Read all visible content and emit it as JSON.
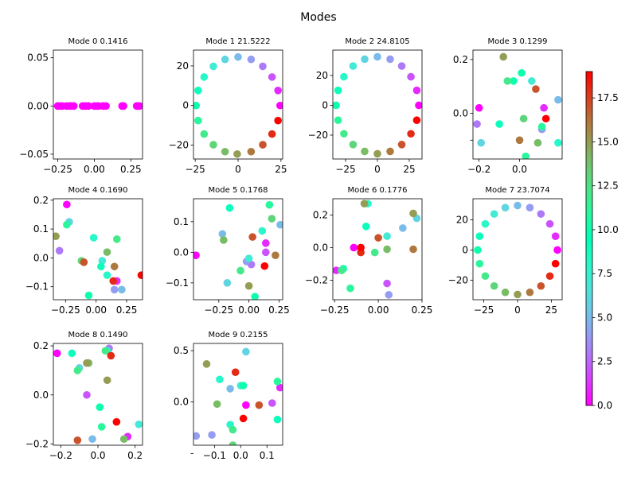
{
  "figure": {
    "suptitle": "Modes"
  },
  "colorbar": {
    "colormap": "rainbow",
    "vmin": 0,
    "vmax": 19,
    "ticks": [
      "0.0",
      "2.5",
      "5.0",
      "7.5",
      "10.0",
      "12.5",
      "15.0",
      "17.5"
    ]
  },
  "chart_data": [
    {
      "type": "scatter",
      "title": "Mode 0 0.1416",
      "xlim": [
        -0.28,
        0.33
      ],
      "ylim": [
        -0.055,
        0.058
      ],
      "xticks": [
        -0.25,
        0.0,
        0.25
      ],
      "xticklabels": [
        "−0.25",
        "0.00",
        "0.25"
      ],
      "yticks": [
        -0.05,
        0.0,
        0.05
      ],
      "yticklabels": [
        "−0.05",
        "0.00",
        "0.05"
      ],
      "x": [
        -0.25,
        -0.24,
        -0.22,
        -0.17,
        -0.16,
        -0.14,
        -0.08,
        -0.06,
        -0.04,
        0.02,
        0.03,
        0.06,
        0.08,
        0.19,
        0.2,
        0.29,
        0.3,
        0.31,
        -0.19,
        0.0
      ],
      "y": [
        0,
        0,
        0,
        0,
        0,
        0,
        0,
        0,
        0,
        0,
        0,
        0,
        0,
        0,
        0,
        0,
        0,
        0,
        0,
        0
      ],
      "c": [
        0,
        0,
        0,
        0,
        0,
        0,
        0,
        0,
        0,
        0,
        0,
        0,
        0,
        0,
        0,
        0,
        0,
        0,
        0,
        0
      ]
    },
    {
      "type": "scatter",
      "title": "Mode 1 21.5222",
      "xlim": [
        -26,
        26
      ],
      "ylim": [
        -27,
        28
      ],
      "xticks": [
        -25,
        0,
        25
      ],
      "xticklabels": [
        "−25",
        "0",
        "25"
      ],
      "yticks": [
        -20,
        0,
        20
      ],
      "yticklabels": [
        "−20",
        "0",
        "20"
      ],
      "x": [
        24.5,
        23.3,
        19.8,
        14.4,
        7.6,
        0,
        -7.6,
        -14.4,
        -19.8,
        -23.3,
        -24.5,
        -23.3,
        -19.8,
        -14.4,
        -7.6,
        -0.5,
        7.6,
        14.4,
        19.8,
        23.3
      ],
      "y": [
        0,
        7.6,
        14.4,
        19.8,
        23.3,
        24.5,
        23.3,
        19.8,
        14.4,
        7.6,
        0,
        -7.6,
        -14.4,
        -19.8,
        -23.3,
        -24.5,
        -23.3,
        -19.8,
        -14.4,
        -7.6
      ],
      "c": [
        0,
        1,
        2,
        3,
        4,
        5,
        6,
        7,
        8,
        9,
        10,
        11,
        12,
        13,
        14,
        15,
        16,
        17,
        18,
        19
      ]
    },
    {
      "type": "scatter",
      "title": "Mode 2 24.8105",
      "xlim": [
        -35,
        35
      ],
      "ylim": [
        -36,
        37
      ],
      "xticks": [
        -25,
        0,
        25
      ],
      "xticklabels": [
        "−25",
        "0",
        "25"
      ],
      "yticks": [
        -20,
        0,
        20
      ],
      "yticklabels": [
        "−20",
        "0",
        "20"
      ],
      "x": [
        32.5,
        30.9,
        26.3,
        19.1,
        10.0,
        0,
        -10.0,
        -19.1,
        -26.3,
        -30.9,
        -32.5,
        -30.9,
        -26.3,
        -19.1,
        -10.0,
        0,
        10.0,
        19.1,
        26.3,
        30.9
      ],
      "y": [
        0,
        10.0,
        19.1,
        26.3,
        30.9,
        32.5,
        30.9,
        26.3,
        19.1,
        10.0,
        0,
        -10.0,
        -19.1,
        -26.3,
        -30.9,
        -32.5,
        -30.9,
        -26.3,
        -19.1,
        -10.0
      ],
      "c": [
        0,
        1,
        2,
        3,
        4,
        5,
        6,
        7,
        8,
        9,
        10,
        11,
        12,
        13,
        14,
        15,
        16,
        17,
        18,
        19
      ]
    },
    {
      "type": "scatter",
      "title": "Mode 3 0.1299",
      "xlim": [
        -0.23,
        0.21
      ],
      "ylim": [
        -0.17,
        0.235
      ],
      "xticks": [
        -0.2,
        0.0
      ],
      "xticklabels": [
        "−0.2",
        "0.0"
      ],
      "yticks": [
        -0.1,
        0.0,
        0.2
      ],
      "yticklabels": [
        "",
        "0.0",
        "0.2"
      ],
      "x": [
        -0.2,
        0.12,
        -0.21,
        0.11,
        0.19,
        -0.19,
        0.06,
        0.19,
        -0.1,
        -0.03,
        0.01,
        0.03,
        0.11,
        -0.06,
        0.02,
        0.09,
        -0.08,
        0.0,
        0.08,
        0.13
      ],
      "y": [
        0.02,
        0.02,
        -0.04,
        -0.06,
        0.05,
        -0.11,
        0.12,
        -0.11,
        -0.04,
        0.12,
        0.15,
        -0.16,
        -0.05,
        0.12,
        -0.02,
        -0.11,
        0.21,
        -0.1,
        0.09,
        -0.02
      ],
      "c": [
        0,
        1,
        3,
        4,
        5,
        6,
        7,
        8,
        9,
        10,
        10,
        11,
        11,
        12,
        13,
        14,
        15,
        16,
        17,
        19
      ]
    },
    {
      "type": "scatter",
      "title": "Mode 4 0.1690",
      "xlim": [
        -0.35,
        0.38
      ],
      "ylim": [
        -0.145,
        0.205
      ],
      "xticks": [
        -0.25,
        0.0,
        0.25
      ],
      "xticklabels": [
        "−0.25",
        "0.00",
        "0.25"
      ],
      "yticks": [
        -0.1,
        0.0,
        0.1,
        0.2
      ],
      "yticklabels": [
        "−0.1",
        "0.0",
        "0.1",
        "0.2"
      ],
      "x": [
        -0.24,
        0.17,
        -0.3,
        0.15,
        -0.22,
        0.21,
        0.05,
        0.09,
        -0.02,
        0.04,
        -0.06,
        -0.24,
        0.17,
        -0.12,
        0.09,
        -0.33,
        0.15,
        -0.1,
        0.14,
        0.37
      ],
      "y": [
        0.185,
        -0.08,
        0.025,
        -0.11,
        0.125,
        -0.11,
        -0.01,
        -0.06,
        0.07,
        -0.03,
        -0.13,
        0.115,
        0.065,
        -0.01,
        0.02,
        0.075,
        -0.03,
        -0.015,
        -0.08,
        -0.06
      ],
      "c": [
        0,
        1,
        3,
        4,
        6,
        5,
        7,
        8,
        8,
        9,
        10,
        11,
        12,
        13,
        14,
        15,
        16,
        17,
        18,
        19
      ]
    },
    {
      "type": "scatter",
      "title": "Mode 5 0.1768",
      "xlim": [
        -0.46,
        0.28
      ],
      "ylim": [
        -0.155,
        0.175
      ],
      "xticks": [
        -0.25,
        0.0,
        0.25
      ],
      "xticklabels": [
        "−0.25",
        "0.00",
        "0.25"
      ],
      "yticks": [
        -0.1,
        0.0,
        0.1
      ],
      "yticklabels": [
        "−0.1",
        "0.0",
        "0.1"
      ],
      "x": [
        -0.44,
        0.14,
        0.14,
        0.02,
        -0.02,
        0.26,
        -0.22,
        -0.18,
        0.0,
        0.11,
        -0.16,
        0.05,
        0.17,
        -0.07,
        0.19,
        -0.21,
        0.0,
        0.22,
        0.03,
        0.13
      ],
      "y": [
        -0.01,
        0.03,
        0.0,
        -0.04,
        -0.03,
        0.09,
        0.06,
        -0.1,
        -0.02,
        0.07,
        0.145,
        -0.145,
        0.155,
        -0.06,
        0.11,
        0.04,
        -0.11,
        -0.01,
        0.05,
        -0.045
      ],
      "c": [
        0,
        1,
        2,
        3,
        4,
        5,
        5,
        6,
        7,
        8,
        9,
        10,
        11,
        12,
        13,
        14,
        15,
        16,
        17,
        19
      ]
    },
    {
      "type": "scatter",
      "title": "Mode 6 0.1776",
      "xlim": [
        -0.26,
        0.25
      ],
      "ylim": [
        -0.32,
        0.3
      ],
      "xticks": [
        -0.25,
        0.0,
        0.25
      ],
      "xticklabels": [
        "−0.25",
        "0.00",
        "0.25"
      ],
      "yticks": [
        -0.2,
        0.0,
        0.2
      ],
      "yticklabels": [
        "−0.2",
        "0.0",
        "0.2"
      ],
      "x": [
        -0.14,
        -0.24,
        0.05,
        0.06,
        0.22,
        0.14,
        0.05,
        -0.06,
        -0.07,
        -0.2,
        -0.16,
        -0.02,
        -0.21,
        0.05,
        -0.08,
        0.2,
        0.2,
        0.0,
        -0.1,
        -0.1
      ],
      "y": [
        0.0,
        -0.14,
        -0.22,
        -0.29,
        0.18,
        0.12,
        0.07,
        0.27,
        0.13,
        -0.13,
        -0.25,
        -0.03,
        -0.14,
        -0.01,
        0.27,
        0.21,
        -0.01,
        0.06,
        -0.03,
        0.0
      ],
      "c": [
        0,
        1,
        2,
        4,
        6,
        5,
        7,
        8,
        9,
        10,
        11,
        12,
        12,
        14,
        15,
        15,
        16,
        17,
        18,
        19
      ]
    },
    {
      "type": "scatter",
      "title": "Mode 7 23.7074",
      "xlim": [
        -33,
        33
      ],
      "ylim": [
        -33,
        34
      ],
      "xticks": [
        -25,
        0,
        25
      ],
      "xticklabels": [
        "−25",
        "0",
        "25"
      ],
      "yticks": [
        -20,
        0,
        20
      ],
      "yticklabels": [
        "−20",
        "0",
        "20"
      ],
      "x": [
        29.5,
        28.1,
        23.9,
        17.3,
        9.1,
        0,
        -9.1,
        -17.3,
        -23.9,
        -28.1,
        -29.5,
        -28.1,
        -23.9,
        -17.3,
        -9.1,
        0,
        9.1,
        17.3,
        23.9,
        28.1
      ],
      "y": [
        0,
        9.1,
        17.3,
        23.9,
        28.1,
        29.5,
        28.1,
        23.9,
        17.3,
        9.1,
        0,
        -9.1,
        -17.3,
        -23.9,
        -28.1,
        -29.5,
        -28.1,
        -23.9,
        -17.3,
        -9.1
      ],
      "c": [
        0,
        1,
        2,
        3,
        4,
        5,
        6,
        7,
        8,
        9,
        10,
        11,
        12,
        13,
        14,
        15,
        16,
        17,
        18,
        19
      ]
    },
    {
      "type": "scatter",
      "title": "Mode 8 0.1490",
      "xlim": [
        -0.24,
        0.24
      ],
      "ylim": [
        -0.205,
        0.21
      ],
      "xticks": [
        -0.2,
        0.0,
        0.2
      ],
      "xticklabels": [
        "−0.2",
        "0.0",
        "0.2"
      ],
      "yticks": [
        -0.2,
        0.0,
        0.2
      ],
      "yticklabels": [
        "−0.2",
        "0.0",
        "0.2"
      ],
      "x": [
        -0.22,
        0.16,
        -0.06,
        0.06,
        -0.03,
        -0.1,
        0.22,
        0.05,
        -0.14,
        0.01,
        0.02,
        -0.11,
        0.04,
        -0.05,
        0.14,
        0.05,
        -0.06,
        0.07,
        -0.11,
        0.1
      ],
      "y": [
        0.17,
        -0.17,
        0.0,
        0.19,
        -0.18,
        0.11,
        -0.12,
        0.18,
        0.17,
        -0.05,
        -0.13,
        0.1,
        0.18,
        0.13,
        -0.18,
        0.06,
        0.13,
        0.16,
        -0.185,
        -0.11
      ],
      "c": [
        0,
        1,
        2,
        3,
        5,
        6,
        7,
        8,
        9,
        10,
        11,
        12,
        12,
        14,
        14,
        15,
        15,
        18,
        17,
        19
      ]
    },
    {
      "type": "scatter",
      "title": "Mode 9 0.2155",
      "xlim": [
        -0.18,
        0.16
      ],
      "ylim": [
        -0.42,
        0.57
      ],
      "xticks": [
        -0.1,
        0.0,
        0.1
      ],
      "xticklabels": [
        "−0.1",
        "0.0",
        "0.1"
      ],
      "yticks": [
        -0.5,
        0.0,
        0.5
      ],
      "yticklabels": [
        "",
        "0.0",
        "0.5"
      ],
      "x": [
        0.02,
        0.15,
        0.12,
        -0.11,
        -0.17,
        0.02,
        -0.04,
        0.0,
        -0.08,
        -0.04,
        0.01,
        0.14,
        0.14,
        -0.03,
        -0.03,
        -0.13,
        -0.09,
        0.07,
        -0.02,
        0.01
      ],
      "y": [
        -0.03,
        0.14,
        -0.01,
        -0.32,
        -0.33,
        0.49,
        0.13,
        0.16,
        0.22,
        -0.22,
        0.16,
        0.2,
        -0.17,
        -0.27,
        -0.42,
        0.37,
        -0.02,
        -0.03,
        0.29,
        -0.16
      ],
      "c": [
        0,
        1,
        2,
        4,
        4,
        6,
        5,
        7,
        8,
        8,
        10,
        11,
        9,
        12,
        13,
        15,
        14,
        17,
        18,
        19
      ]
    }
  ]
}
